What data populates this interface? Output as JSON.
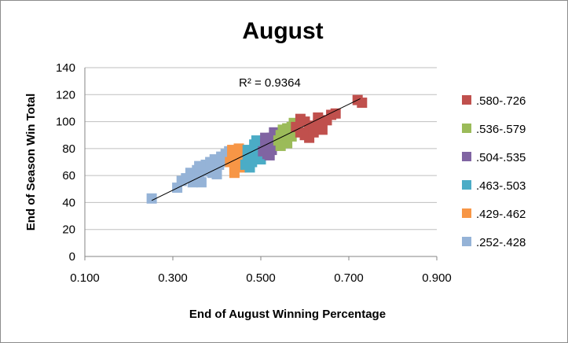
{
  "chart_data": {
    "type": "scatter",
    "title": "August",
    "xlabel": "End of August Winning Percentage",
    "ylabel": "End of Season Win Total",
    "xlim": [
      0.1,
      0.9
    ],
    "ylim": [
      0,
      140
    ],
    "x_ticks": [
      "0.100",
      "0.300",
      "0.500",
      "0.700",
      "0.900"
    ],
    "y_ticks": [
      "0",
      "20",
      "40",
      "60",
      "80",
      "100",
      "120",
      "140"
    ],
    "grid": "horizontal",
    "legend_position": "right",
    "annotation": "R² = 0.9364",
    "trendline": {
      "x": [
        0.252,
        0.726
      ],
      "y": [
        41.5,
        117
      ]
    },
    "series": [
      {
        "name": ".580-.726",
        "color": "#c0504d",
        "points": [
          [
            0.58,
            96
          ],
          [
            0.59,
            92
          ],
          [
            0.6,
            100
          ],
          [
            0.61,
            88
          ],
          [
            0.62,
            97
          ],
          [
            0.63,
            103
          ],
          [
            0.64,
            94
          ],
          [
            0.65,
            101
          ],
          [
            0.66,
            105
          ],
          [
            0.59,
            102
          ],
          [
            0.61,
            95
          ],
          [
            0.63,
            98
          ],
          [
            0.6,
            90
          ],
          [
            0.62,
            92
          ],
          [
            0.67,
            106
          ],
          [
            0.72,
            116
          ],
          [
            0.73,
            114
          ]
        ]
      },
      {
        "name": ".536-.579",
        "color": "#9bbb59",
        "points": [
          [
            0.54,
            86
          ],
          [
            0.545,
            90
          ],
          [
            0.55,
            92
          ],
          [
            0.555,
            88
          ],
          [
            0.56,
            95
          ],
          [
            0.565,
            91
          ],
          [
            0.57,
            96
          ],
          [
            0.575,
            94
          ],
          [
            0.58,
            97
          ],
          [
            0.56,
            84
          ],
          [
            0.57,
            89
          ],
          [
            0.545,
            82
          ],
          [
            0.55,
            94
          ],
          [
            0.575,
            99
          ]
        ]
      },
      {
        "name": ".504-.535",
        "color": "#8064a2",
        "points": [
          [
            0.505,
            78
          ],
          [
            0.51,
            84
          ],
          [
            0.515,
            80
          ],
          [
            0.52,
            86
          ],
          [
            0.525,
            88
          ],
          [
            0.53,
            82
          ],
          [
            0.535,
            90
          ],
          [
            0.52,
            75
          ],
          [
            0.51,
            88
          ],
          [
            0.53,
            92
          ],
          [
            0.515,
            76
          ],
          [
            0.525,
            79
          ]
        ]
      },
      {
        "name": ".463-.503",
        "color": "#4bacc6",
        "points": [
          [
            0.465,
            68
          ],
          [
            0.47,
            72
          ],
          [
            0.475,
            66
          ],
          [
            0.48,
            75
          ],
          [
            0.485,
            78
          ],
          [
            0.49,
            80
          ],
          [
            0.495,
            76
          ],
          [
            0.5,
            84
          ],
          [
            0.48,
            70
          ],
          [
            0.49,
            86
          ],
          [
            0.47,
            79
          ],
          [
            0.5,
            72
          ],
          [
            0.485,
            83
          ]
        ]
      },
      {
        "name": ".429-.462",
        "color": "#f79646",
        "points": [
          [
            0.43,
            70
          ],
          [
            0.435,
            74
          ],
          [
            0.44,
            66
          ],
          [
            0.445,
            78
          ],
          [
            0.45,
            72
          ],
          [
            0.455,
            75
          ],
          [
            0.46,
            70
          ],
          [
            0.44,
            62
          ],
          [
            0.45,
            80
          ],
          [
            0.455,
            66
          ],
          [
            0.435,
            79
          ],
          [
            0.46,
            78
          ]
        ]
      },
      {
        "name": ".252-.428",
        "color": "#95b3d7",
        "points": [
          [
            0.252,
            43
          ],
          [
            0.31,
            51
          ],
          [
            0.32,
            56
          ],
          [
            0.33,
            58
          ],
          [
            0.34,
            62
          ],
          [
            0.345,
            55
          ],
          [
            0.35,
            58
          ],
          [
            0.355,
            64
          ],
          [
            0.36,
            60
          ],
          [
            0.365,
            55
          ],
          [
            0.37,
            63
          ],
          [
            0.375,
            68
          ],
          [
            0.38,
            65
          ],
          [
            0.385,
            70
          ],
          [
            0.39,
            62
          ],
          [
            0.395,
            72
          ],
          [
            0.4,
            66
          ],
          [
            0.405,
            68
          ],
          [
            0.41,
            74
          ],
          [
            0.415,
            70
          ],
          [
            0.42,
            76
          ],
          [
            0.425,
            72
          ],
          [
            0.428,
            78
          ],
          [
            0.4,
            61
          ],
          [
            0.36,
            67
          ]
        ]
      }
    ]
  }
}
